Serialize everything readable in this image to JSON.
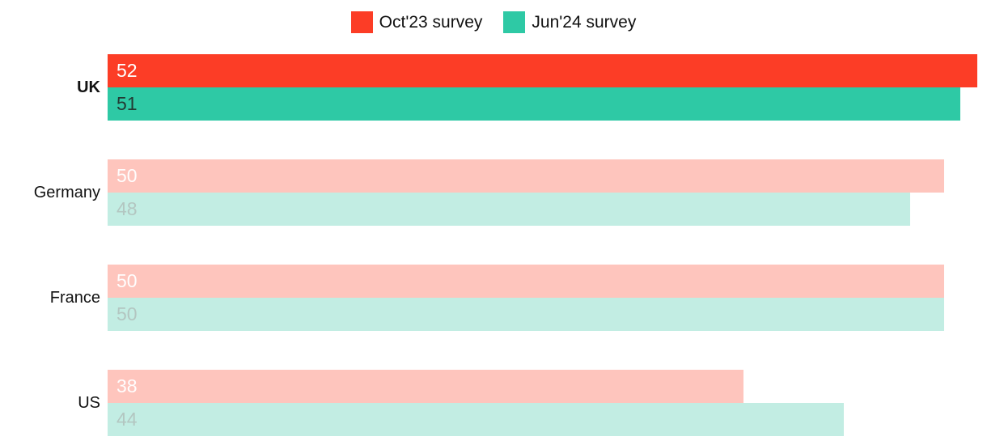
{
  "legend": {
    "items": [
      {
        "label": "Oct'23 survey",
        "color": "#fc3d26"
      },
      {
        "label": "Jun'24 survey",
        "color": "#2ec9a5"
      }
    ]
  },
  "chart_data": {
    "type": "bar",
    "orientation": "horizontal",
    "title": "",
    "categories": [
      "UK",
      "Germany",
      "France",
      "US"
    ],
    "series": [
      {
        "name": "Oct'23 survey",
        "values": [
          52,
          50,
          50,
          38
        ],
        "color": "#fc3d26",
        "muted_color": "#fec5bd",
        "value_label_color": "#ffffff",
        "muted_value_label_color": "#fffdfd"
      },
      {
        "name": "Jun'24 survey",
        "values": [
          51,
          48,
          50,
          44
        ],
        "color": "#2ec9a5",
        "muted_color": "#c2ede3",
        "value_label_color": "#233b34",
        "muted_value_label_color": "#b3c6c1"
      }
    ],
    "highlighted_category": "UK",
    "xlim": [
      0,
      52.6
    ],
    "value_labels": true,
    "legend_position": "top",
    "grid": false
  }
}
